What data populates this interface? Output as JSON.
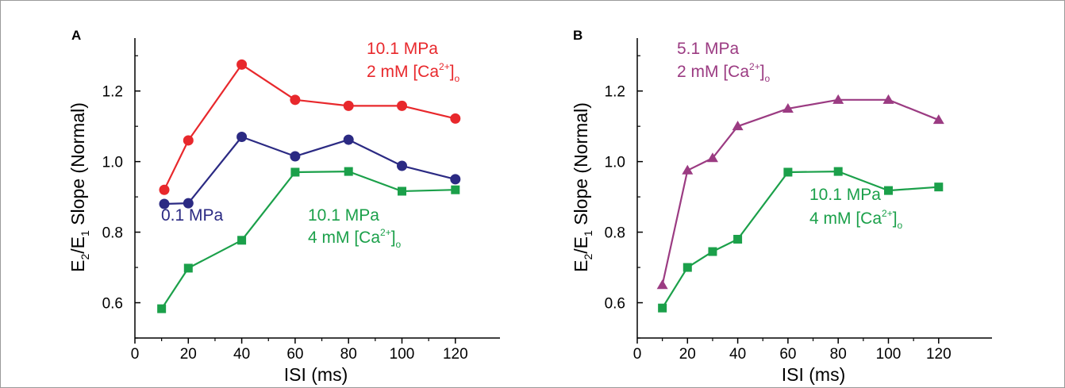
{
  "chart_data": [
    {
      "panel": "A",
      "type": "line",
      "xlabel": "ISI (ms)",
      "ylabel": "E2/E1 Slope (Normal)",
      "xlim": [
        0,
        130
      ],
      "ylim": [
        0.5,
        1.35
      ],
      "xticks": [
        0,
        20,
        40,
        60,
        80,
        100,
        120
      ],
      "yticks": [
        0.6,
        0.8,
        1.0,
        1.2
      ],
      "ytick_labels": [
        "0.6",
        "0.8",
        "1.0",
        "1.2"
      ],
      "series": [
        {
          "name": "10.1 MPa 2 mM [Ca2+]o",
          "label_line1": "10.1 MPa",
          "label_line2": "2 mM [Ca",
          "sup": "2+",
          "close": "]",
          "sub": "o",
          "color": "#e8282c",
          "marker": "circle",
          "x": [
            11,
            20,
            40,
            60,
            80,
            100,
            120
          ],
          "y": [
            0.92,
            1.06,
            1.275,
            1.175,
            1.158,
            1.158,
            1.122
          ]
        },
        {
          "name": "0.1 MPa",
          "label_line1": "0.1 MPa",
          "color": "#2b2a83",
          "marker": "circle",
          "x": [
            11,
            20,
            40,
            60,
            80,
            100,
            120
          ],
          "y": [
            0.88,
            0.882,
            1.07,
            1.015,
            1.062,
            0.988,
            0.95
          ]
        },
        {
          "name": "10.1 MPa 4 mM [Ca2+]o",
          "label_line1": "10.1 MPa",
          "label_line2": "4 mM [Ca",
          "sup": "2+",
          "close": "]",
          "sub": "o",
          "color": "#1ba04a",
          "marker": "square",
          "x": [
            10,
            20,
            40,
            60,
            80,
            100,
            120
          ],
          "y": [
            0.583,
            0.698,
            0.777,
            0.97,
            0.972,
            0.916,
            0.92
          ]
        }
      ]
    },
    {
      "panel": "B",
      "type": "line",
      "xlabel": "ISI (ms)",
      "ylabel": "E2/E1 Slope (Normal)",
      "xlim": [
        0,
        130
      ],
      "ylim": [
        0.5,
        1.35
      ],
      "xticks": [
        0,
        20,
        40,
        60,
        80,
        100,
        120
      ],
      "yticks": [
        0.6,
        0.8,
        1.0,
        1.2
      ],
      "ytick_labels": [
        "0.6",
        "0.8",
        "1.0",
        "1.2"
      ],
      "series": [
        {
          "name": "5.1 MPa 2 mM [Ca2+]o",
          "label_line1": "5.1 MPa",
          "label_line2": "2 mM [Ca",
          "sup": "2+",
          "close": "]",
          "sub": "o",
          "color": "#9b3b82",
          "marker": "triangle",
          "x": [
            10,
            20,
            30,
            40,
            60,
            80,
            100,
            120
          ],
          "y": [
            0.65,
            0.975,
            1.01,
            1.1,
            1.15,
            1.175,
            1.175,
            1.118
          ]
        },
        {
          "name": "10.1 MPa 4 mM [Ca2+]o",
          "label_line1": "10.1 MPa",
          "label_line2": "4 mM [Ca",
          "sup": "2+",
          "close": "]",
          "sub": "o",
          "color": "#1ba04a",
          "marker": "square",
          "x": [
            10,
            20,
            30,
            40,
            60,
            80,
            100,
            120
          ],
          "y": [
            0.585,
            0.7,
            0.745,
            0.78,
            0.97,
            0.972,
            0.918,
            0.928
          ]
        }
      ]
    }
  ]
}
